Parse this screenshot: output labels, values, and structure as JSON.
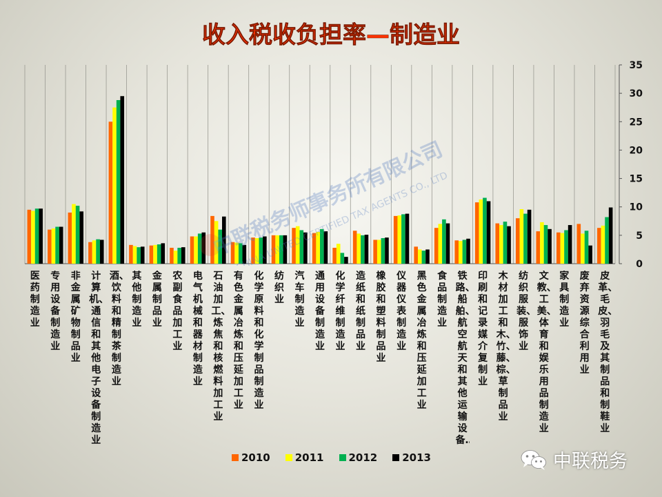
{
  "title": "收入税收负担率—制造业",
  "watermark": {
    "line1": "中联税务师事务所有限公司",
    "line2": "CHINA UNITED CERTIFIED TAX AGENTS CO., LTD"
  },
  "brand": {
    "name": "中联税务",
    "icon": "wechat-icon"
  },
  "colors": {
    "2010": "#ff6600",
    "2011": "#ffff00",
    "2012": "#00b050",
    "2013": "#000000",
    "title": "#ff3300"
  },
  "chart_data": {
    "type": "bar",
    "title": "收入税收负担率—制造业",
    "xlabel": "",
    "ylabel": "",
    "ylim": [
      0,
      35
    ],
    "yticks": [
      0,
      5,
      10,
      15,
      20,
      25,
      30,
      35
    ],
    "y_axis_position": "right",
    "grid": "vertical",
    "legend": "bottom",
    "categories": [
      "医药制造业",
      "专用设备制造业",
      "非金属矿物制品业",
      "计算机、通信和其他电子设备制造业",
      "酒、饮料和精制茶制造业",
      "其他制造业",
      "金属制品业",
      "农副食品加工业",
      "电气机械和器材制造业",
      "石油加工、炼焦和核燃料加工业",
      "有色金属冶炼和压延加工业",
      "化学原料和化学制品制造业",
      "纺织业",
      "汽车制造业",
      "通用设备制造业",
      "化学纤维制造业",
      "造纸和纸制品业",
      "橡胶和塑料制品业",
      "仪器仪表制造业",
      "黑色金属冶炼和压延加工业",
      "食品制造业",
      "铁路、船舶、航空航天和其他运输设备…",
      "印刷和记录媒介复制业",
      "木材加工和木、竹、藤、棕、草制品业",
      "纺织服装、服饰业",
      "文教、工美、体育和娱乐用品制造业",
      "家具制造业",
      "废弃资源综合利用业",
      "皮革、毛皮、羽毛及其制品和制鞋业"
    ],
    "series": [
      {
        "name": "2010",
        "values": [
          9.5,
          6.0,
          9.0,
          3.8,
          25.0,
          3.3,
          3.2,
          2.8,
          4.8,
          8.4,
          3.8,
          4.6,
          5.0,
          6.3,
          5.4,
          2.8,
          5.8,
          4.2,
          8.4,
          3.0,
          6.3,
          4.1,
          10.8,
          7.1,
          8.0,
          5.7,
          5.5,
          7.0,
          6.3
        ]
      },
      {
        "name": "2011",
        "values": [
          9.3,
          6.2,
          10.5,
          4.1,
          27.5,
          3.1,
          3.3,
          2.3,
          4.8,
          7.5,
          3.7,
          4.5,
          5.0,
          6.6,
          5.6,
          3.5,
          5.3,
          4.2,
          8.5,
          2.5,
          7.0,
          4.0,
          11.3,
          6.8,
          9.6,
          7.3,
          5.4,
          5.3,
          6.7
        ]
      },
      {
        "name": "2012",
        "values": [
          9.7,
          6.5,
          10.2,
          4.3,
          28.8,
          2.9,
          3.4,
          2.8,
          5.3,
          6.0,
          3.6,
          4.6,
          5.0,
          5.9,
          6.1,
          1.9,
          5.0,
          4.5,
          8.7,
          2.3,
          7.8,
          4.2,
          11.6,
          7.4,
          8.8,
          6.8,
          5.9,
          5.8,
          8.2
        ]
      },
      {
        "name": "2013",
        "values": [
          9.7,
          6.5,
          9.2,
          4.2,
          29.5,
          3.0,
          3.6,
          2.9,
          5.5,
          8.3,
          3.3,
          4.8,
          5.0,
          5.5,
          5.7,
          1.2,
          5.1,
          4.6,
          8.8,
          2.5,
          7.1,
          4.4,
          11.0,
          6.6,
          9.5,
          6.1,
          6.8,
          3.2,
          9.9
        ]
      }
    ]
  }
}
